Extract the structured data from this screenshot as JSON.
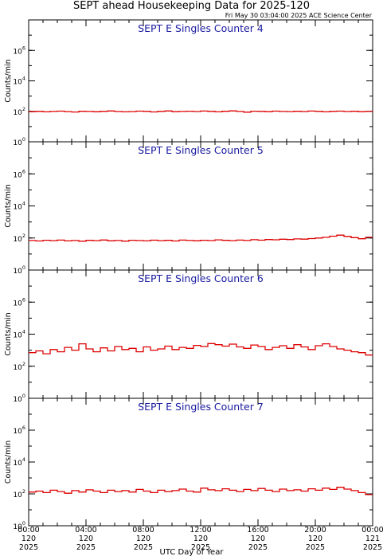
{
  "page": {
    "title": "SEPT ahead Housekeeping Data for 2025-120",
    "timestamp": "Fri May 30 03:04:00 2025 ACE Science Center",
    "xlabel": "UTC Day of Year"
  },
  "colors": {
    "series": "#dd0000",
    "panel_title": "#1a1aa0",
    "axis": "#000000"
  },
  "chart_data": [
    {
      "type": "line",
      "title": "SEPT E Singles Counter 4",
      "ylabel": "Counts/min",
      "yscale": "log",
      "ylim": [
        1,
        100000000
      ],
      "xlim": [
        0,
        24
      ],
      "x_unit": "hour of day",
      "y_ticks": [
        {
          "value": 1,
          "base": "10",
          "exp": "0"
        },
        {
          "value": 100,
          "base": "10",
          "exp": "2"
        },
        {
          "value": 10000,
          "base": "10",
          "exp": "4"
        },
        {
          "value": 1000000,
          "base": "10",
          "exp": "6"
        }
      ],
      "x": [
        0,
        0.5,
        1,
        1.5,
        2,
        2.5,
        3,
        3.5,
        4,
        4.5,
        5,
        5.5,
        6,
        6.5,
        7,
        7.5,
        8,
        8.5,
        9,
        9.5,
        10,
        10.5,
        11,
        11.5,
        12,
        12.5,
        13,
        13.5,
        14,
        14.5,
        15,
        15.5,
        16,
        16.5,
        17,
        17.5,
        18,
        18.5,
        19,
        19.5,
        20,
        20.5,
        21,
        21.5,
        22,
        22.5,
        23,
        23.5
      ],
      "y": [
        95,
        100,
        92,
        98,
        103,
        96,
        90,
        101,
        98,
        94,
        99,
        105,
        97,
        92,
        96,
        103,
        99,
        91,
        100,
        106,
        95,
        98,
        102,
        97,
        104,
        99,
        93,
        101,
        107,
        98,
        88,
        102,
        99,
        95,
        103,
        98,
        96,
        101,
        97,
        104,
        99,
        92,
        100,
        103,
        97,
        101,
        95,
        98
      ]
    },
    {
      "type": "line",
      "title": "SEPT E Singles Counter 5",
      "ylabel": "Counts/min",
      "yscale": "log",
      "ylim": [
        1,
        100000000
      ],
      "xlim": [
        0,
        24
      ],
      "x_unit": "hour of day",
      "y_ticks": [
        {
          "value": 1,
          "base": "10",
          "exp": "0"
        },
        {
          "value": 100,
          "base": "10",
          "exp": "2"
        },
        {
          "value": 10000,
          "base": "10",
          "exp": "4"
        },
        {
          "value": 1000000,
          "base": "10",
          "exp": "6"
        }
      ],
      "x": [
        0,
        0.5,
        1,
        1.5,
        2,
        2.5,
        3,
        3.5,
        4,
        4.5,
        5,
        5.5,
        6,
        6.5,
        7,
        7.5,
        8,
        8.5,
        9,
        9.5,
        10,
        10.5,
        11,
        11.5,
        12,
        12.5,
        13,
        13.5,
        14,
        14.5,
        15,
        15.5,
        16,
        16.5,
        17,
        17.5,
        18,
        18.5,
        19,
        19.5,
        20,
        20.5,
        21,
        21.5,
        22,
        22.5,
        23,
        23.5
      ],
      "y": [
        70,
        65,
        72,
        68,
        74,
        66,
        70,
        63,
        71,
        68,
        75,
        67,
        70,
        64,
        72,
        69,
        66,
        73,
        68,
        71,
        65,
        74,
        70,
        67,
        72,
        69,
        76,
        71,
        68,
        74,
        70,
        78,
        73,
        80,
        77,
        84,
        80,
        88,
        85,
        92,
        100,
        110,
        130,
        150,
        125,
        105,
        90,
        110
      ]
    },
    {
      "type": "line",
      "title": "SEPT E Singles Counter 6",
      "ylabel": "Counts/min",
      "yscale": "log",
      "ylim": [
        1,
        100000000
      ],
      "xlim": [
        0,
        24
      ],
      "x_unit": "hour of day",
      "y_ticks": [
        {
          "value": 1,
          "base": "10",
          "exp": "0"
        },
        {
          "value": 100,
          "base": "10",
          "exp": "2"
        },
        {
          "value": 10000,
          "base": "10",
          "exp": "4"
        },
        {
          "value": 1000000,
          "base": "10",
          "exp": "6"
        }
      ],
      "x": [
        0,
        0.5,
        1,
        1.5,
        2,
        2.5,
        3,
        3.5,
        4,
        4.5,
        5,
        5.5,
        6,
        6.5,
        7,
        7.5,
        8,
        8.5,
        9,
        9.5,
        10,
        10.5,
        11,
        11.5,
        12,
        12.5,
        13,
        13.5,
        14,
        14.5,
        15,
        15.5,
        16,
        16.5,
        17,
        17.5,
        18,
        18.5,
        19,
        19.5,
        20,
        20.5,
        21,
        21.5,
        22,
        22.5,
        23,
        23.5
      ],
      "y": [
        700,
        900,
        600,
        1100,
        800,
        1500,
        1000,
        2500,
        1200,
        800,
        1400,
        900,
        1700,
        1100,
        1300,
        800,
        1600,
        1000,
        1200,
        1800,
        1100,
        1500,
        1300,
        2000,
        1700,
        2600,
        2200,
        1800,
        2400,
        1600,
        1300,
        2100,
        1700,
        1100,
        1500,
        1900,
        1300,
        2200,
        1600,
        1100,
        1900,
        2500,
        1700,
        1200,
        1000,
        800,
        700,
        500
      ]
    },
    {
      "type": "line",
      "title": "SEPT E Singles Counter 7",
      "ylabel": "Counts/min",
      "yscale": "log",
      "ylim": [
        1,
        100000000
      ],
      "xlim": [
        0,
        24
      ],
      "x_unit": "hour of day",
      "y_ticks": [
        {
          "value": 1,
          "base": "10",
          "exp": "0"
        },
        {
          "value": 100,
          "base": "10",
          "exp": "2"
        },
        {
          "value": 10000,
          "base": "10",
          "exp": "4"
        },
        {
          "value": 1000000,
          "base": "10",
          "exp": "6"
        }
      ],
      "x": [
        0,
        0.5,
        1,
        1.5,
        2,
        2.5,
        3,
        3.5,
        4,
        4.5,
        5,
        5.5,
        6,
        6.5,
        7,
        7.5,
        8,
        8.5,
        9,
        9.5,
        10,
        10.5,
        11,
        11.5,
        12,
        12.5,
        13,
        13.5,
        14,
        14.5,
        15,
        15.5,
        16,
        16.5,
        17,
        17.5,
        18,
        18.5,
        19,
        19.5,
        20,
        20.5,
        21,
        21.5,
        22,
        22.5,
        23,
        23.5
      ],
      "y": [
        130,
        150,
        120,
        170,
        140,
        110,
        160,
        130,
        180,
        150,
        120,
        170,
        140,
        160,
        130,
        190,
        150,
        120,
        170,
        140,
        160,
        200,
        150,
        130,
        230,
        180,
        160,
        210,
        170,
        140,
        190,
        160,
        220,
        170,
        140,
        200,
        160,
        180,
        150,
        210,
        170,
        230,
        190,
        260,
        200,
        160,
        120,
        90
      ]
    }
  ],
  "x_ticks": [
    {
      "value": 0,
      "time": "00:00",
      "day": "120",
      "year": "2025"
    },
    {
      "value": 4,
      "time": "04:00",
      "day": "120",
      "year": "2025"
    },
    {
      "value": 8,
      "time": "08:00",
      "day": "120",
      "year": "2025"
    },
    {
      "value": 12,
      "time": "12:00",
      "day": "120",
      "year": "2025"
    },
    {
      "value": 16,
      "time": "16:00",
      "day": "120",
      "year": "2025"
    },
    {
      "value": 20,
      "time": "20:00",
      "day": "120",
      "year": "2025"
    },
    {
      "value": 24,
      "time": "00:00",
      "day": "121",
      "year": "2025"
    }
  ]
}
